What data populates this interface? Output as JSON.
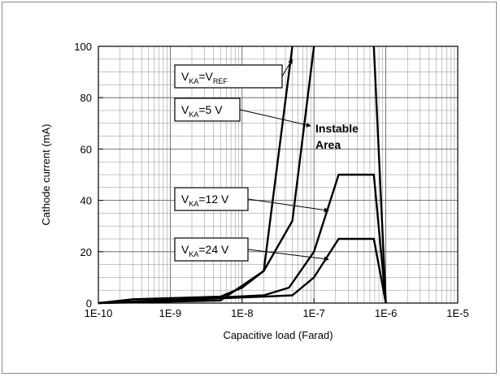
{
  "chart_data": {
    "type": "line",
    "title": "",
    "xlabel": "Capacitive load (Farad)",
    "ylabel": "Cathode current (mA)",
    "x_scale": "log",
    "xlim": [
      1e-10,
      1e-05
    ],
    "ylim": [
      0,
      100
    ],
    "x_ticks": [
      {
        "value": 1e-10,
        "label": "1E-10"
      },
      {
        "value": 1e-09,
        "label": "1E-9"
      },
      {
        "value": 1e-08,
        "label": "1E-8"
      },
      {
        "value": 1e-07,
        "label": "1E-7"
      },
      {
        "value": 1e-06,
        "label": "1E-6"
      },
      {
        "value": 1e-05,
        "label": "1E-5"
      }
    ],
    "y_ticks": [
      {
        "value": 0,
        "label": "0"
      },
      {
        "value": 20,
        "label": "20"
      },
      {
        "value": 40,
        "label": "40"
      },
      {
        "value": 60,
        "label": "60"
      },
      {
        "value": 80,
        "label": "80"
      },
      {
        "value": 100,
        "label": "100"
      }
    ],
    "grid": true,
    "series": [
      {
        "key": "vref",
        "points": [
          [
            1e-10,
            0
          ],
          [
            3e-10,
            1.5
          ],
          [
            5e-09,
            2.5
          ],
          [
            1e-08,
            6
          ],
          [
            2e-08,
            12.5
          ],
          [
            5e-08,
            100
          ]
        ]
      },
      {
        "key": "v5",
        "points": [
          [
            1e-10,
            0
          ],
          [
            5e-09,
            1
          ],
          [
            2e-08,
            12.5
          ],
          [
            5e-08,
            32
          ],
          [
            1e-07,
            100
          ]
        ]
      },
      {
        "key": "v12",
        "points": [
          [
            1e-10,
            0
          ],
          [
            2e-08,
            3
          ],
          [
            4.5e-08,
            6
          ],
          [
            1e-07,
            20
          ],
          [
            2.2e-07,
            50
          ],
          [
            6.8e-07,
            50
          ],
          [
            1e-06,
            0
          ]
        ]
      },
      {
        "key": "v24",
        "points": [
          [
            1e-10,
            0
          ],
          [
            2e-08,
            2.5
          ],
          [
            5e-08,
            3
          ],
          [
            1e-07,
            10
          ],
          [
            2.2e-07,
            25
          ],
          [
            6.8e-07,
            25
          ],
          [
            1e-06,
            0
          ]
        ]
      },
      {
        "key": "boundary",
        "points": [
          [
            6.8e-07,
            100
          ],
          [
            1e-06,
            0
          ]
        ]
      }
    ],
    "annotations": [
      {
        "key": "vref",
        "main": "V",
        "sub1": "KA",
        "mid": "=V",
        "sub2": "REF",
        "tail": "",
        "target": [
          5e-08,
          95
        ]
      },
      {
        "key": "v5",
        "main": "V",
        "sub1": "KA",
        "mid": "=5 V",
        "sub2": "",
        "tail": "",
        "target": [
          9e-08,
          69
        ]
      },
      {
        "key": "v12",
        "main": "V",
        "sub1": "KA",
        "mid": "=12 V",
        "sub2": "",
        "tail": "",
        "target": [
          1.6e-07,
          36
        ]
      },
      {
        "key": "v24",
        "main": "V",
        "sub1": "KA",
        "mid": "=24 V",
        "sub2": "",
        "tail": "",
        "target": [
          1.6e-07,
          17
        ]
      }
    ],
    "region_label": [
      "Instable",
      "Area"
    ]
  }
}
